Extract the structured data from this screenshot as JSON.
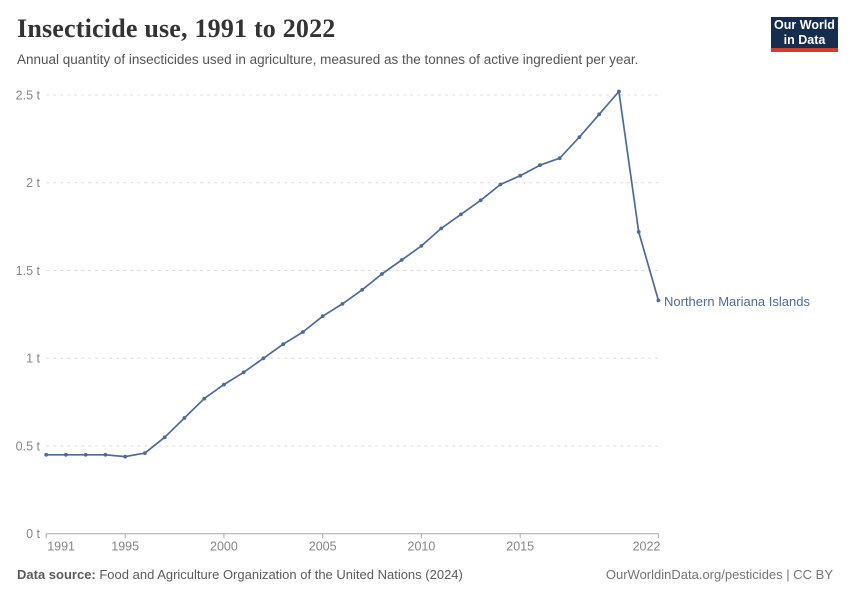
{
  "header": {
    "title": "Insecticide use, 1991 to 2022",
    "subtitle": "Annual quantity of insecticides used in agriculture, measured as the tonnes of active ingredient per year."
  },
  "logo": {
    "line1": "Our World",
    "line2": "in Data"
  },
  "chart_data": {
    "type": "line",
    "title": "Insecticide use, 1991 to 2022",
    "unit": "t (tonnes of active ingredient)",
    "entity": "Northern Mariana Islands",
    "x": [
      1991,
      1992,
      1993,
      1994,
      1995,
      1996,
      1997,
      1998,
      1999,
      2000,
      2001,
      2002,
      2003,
      2004,
      2005,
      2006,
      2007,
      2008,
      2009,
      2010,
      2011,
      2012,
      2013,
      2014,
      2015,
      2016,
      2017,
      2018,
      2019,
      2020,
      2021,
      2022
    ],
    "series": [
      {
        "name": "Northern Mariana Islands",
        "values": [
          0.45,
          0.45,
          0.45,
          0.45,
          0.44,
          0.46,
          0.55,
          0.66,
          0.77,
          0.85,
          0.92,
          1.0,
          1.08,
          1.15,
          1.24,
          1.31,
          1.39,
          1.48,
          1.56,
          1.64,
          1.74,
          1.82,
          1.9,
          1.99,
          2.04,
          2.1,
          2.14,
          2.26,
          2.39,
          2.52,
          1.72,
          1.33
        ]
      }
    ],
    "xlabel": "",
    "ylabel": "",
    "xlim": [
      1991,
      2022
    ],
    "ylim": [
      0,
      2.5
    ],
    "yticks": [
      0,
      0.5,
      1,
      1.5,
      2,
      2.5
    ],
    "ytick_labels": [
      "0 t",
      "0.5 t",
      "1 t",
      "1.5 t",
      "2 t",
      "2.5 t"
    ],
    "xticks": [
      1991,
      1995,
      2000,
      2005,
      2010,
      2015,
      2022
    ],
    "grid": "horizontal dashed gridlines, no vertical grid",
    "legend_position": "label at end of line",
    "line_color": "#4c6a9c"
  },
  "footer": {
    "source_label": "Data source:",
    "source": " Food and Agriculture Organization of the United Nations (2024)",
    "attribution": "OurWorldinData.org/pesticides | CC BY"
  },
  "colors": {
    "line": "#4c6a9c",
    "title": "#333333",
    "subtitle": "#555555",
    "tick_text": "#858585",
    "gridline": "#dcdcdc",
    "axis": "#a8a8a8",
    "logo_bg": "#152d4f",
    "logo_accent": "#d63a2f"
  }
}
